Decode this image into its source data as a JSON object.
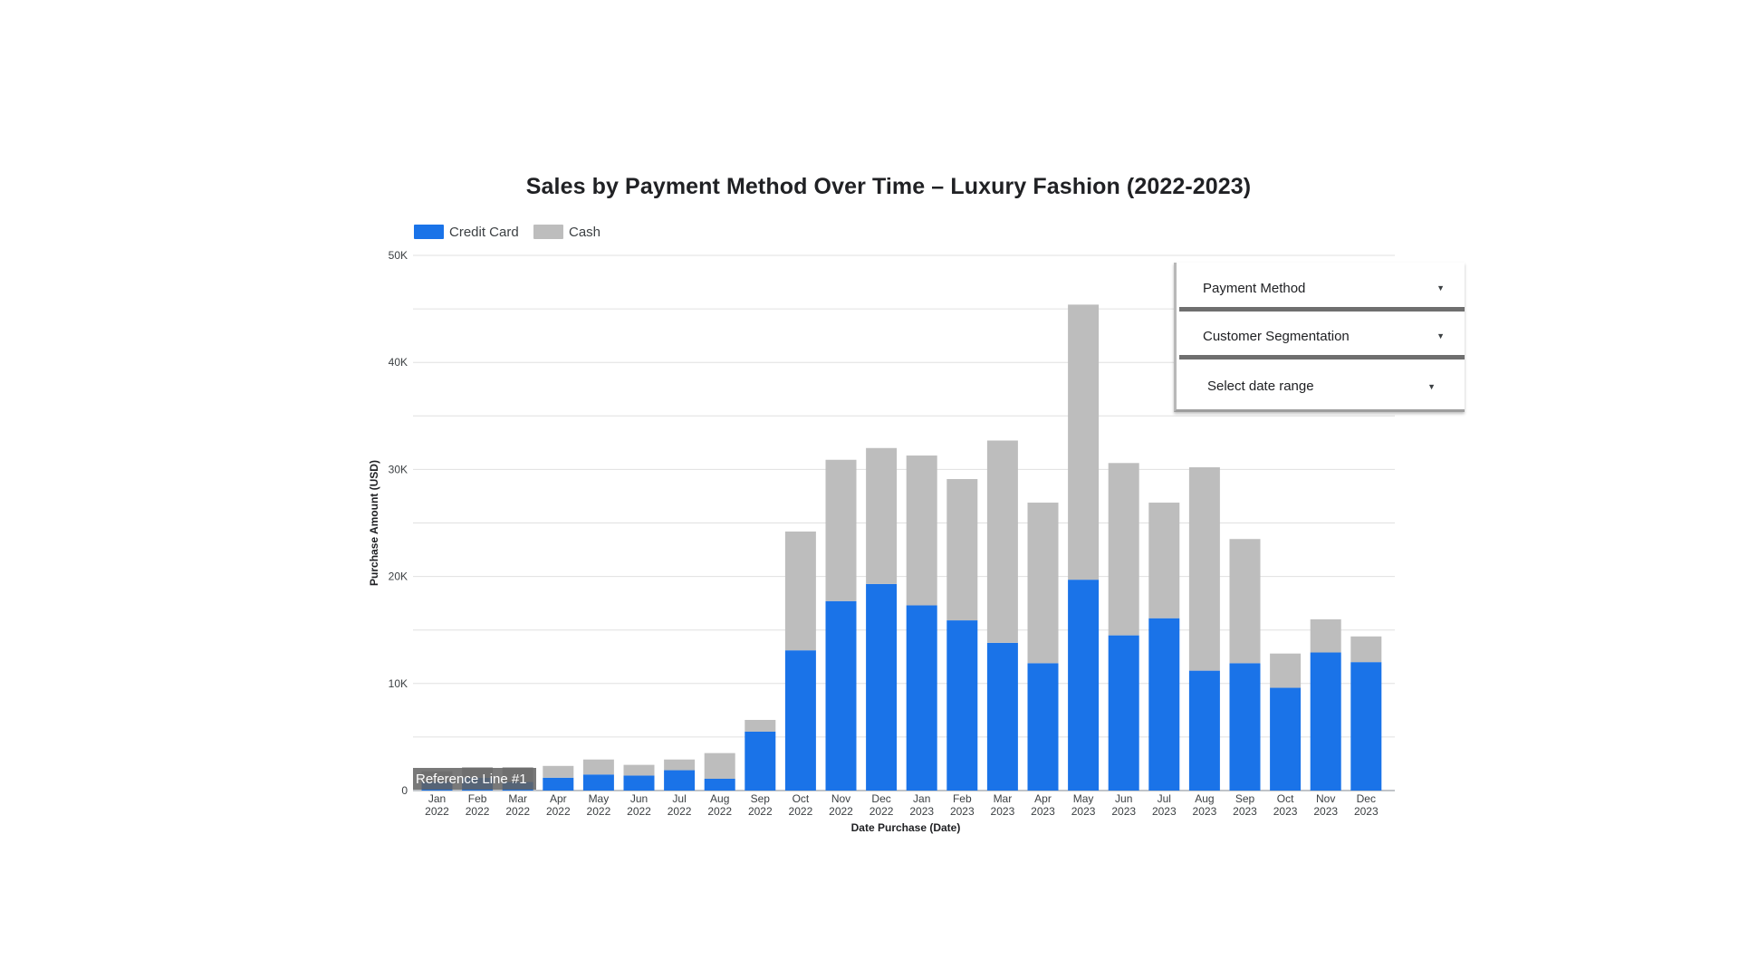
{
  "chart_data": {
    "type": "bar",
    "stacked": true,
    "title": "Sales by Payment Method Over Time – Luxury Fashion (2022-2023)",
    "xlabel": "Date Purchase (Date)",
    "ylabel": "Purchase Amount (USD)",
    "ylim": [
      0,
      50000
    ],
    "yticks": [
      0,
      10000,
      20000,
      30000,
      40000,
      50000
    ],
    "ytick_labels": [
      "0",
      "10K",
      "20K",
      "30K",
      "40K",
      "50K"
    ],
    "legend_position": "top-left",
    "grid": true,
    "categories": [
      {
        "month": "Jan",
        "year": "2022"
      },
      {
        "month": "Feb",
        "year": "2022"
      },
      {
        "month": "Mar",
        "year": "2022"
      },
      {
        "month": "Apr",
        "year": "2022"
      },
      {
        "month": "May",
        "year": "2022"
      },
      {
        "month": "Jun",
        "year": "2022"
      },
      {
        "month": "Jul",
        "year": "2022"
      },
      {
        "month": "Aug",
        "year": "2022"
      },
      {
        "month": "Sep",
        "year": "2022"
      },
      {
        "month": "Oct",
        "year": "2022"
      },
      {
        "month": "Nov",
        "year": "2022"
      },
      {
        "month": "Dec",
        "year": "2022"
      },
      {
        "month": "Jan",
        "year": "2023"
      },
      {
        "month": "Feb",
        "year": "2023"
      },
      {
        "month": "Mar",
        "year": "2023"
      },
      {
        "month": "Apr",
        "year": "2023"
      },
      {
        "month": "May",
        "year": "2023"
      },
      {
        "month": "Jun",
        "year": "2023"
      },
      {
        "month": "Jul",
        "year": "2023"
      },
      {
        "month": "Aug",
        "year": "2023"
      },
      {
        "month": "Sep",
        "year": "2023"
      },
      {
        "month": "Oct",
        "year": "2023"
      },
      {
        "month": "Nov",
        "year": "2023"
      },
      {
        "month": "Dec",
        "year": "2023"
      }
    ],
    "series": [
      {
        "name": "Credit Card",
        "color": "#1a73e8",
        "values": [
          800,
          1200,
          800,
          1200,
          1500,
          1400,
          1900,
          1100,
          5500,
          13100,
          17700,
          19300,
          17300,
          15900,
          13800,
          11900,
          19700,
          14500,
          16100,
          11200,
          11900,
          9600,
          12900,
          12000
        ]
      },
      {
        "name": "Cash",
        "color": "#bdbdbd",
        "values": [
          1000,
          1000,
          1400,
          1100,
          1400,
          1000,
          1000,
          2400,
          1100,
          11100,
          13200,
          12700,
          14000,
          13200,
          18900,
          15000,
          25700,
          16100,
          10800,
          19000,
          11600,
          3200,
          3100,
          2400
        ]
      }
    ],
    "reference_line": {
      "label": "Reference Line #1"
    }
  },
  "filters": [
    {
      "label": "Payment Method",
      "icon": "chevron-down-icon"
    },
    {
      "label": "Customer Segmentation",
      "icon": "chevron-down-icon"
    },
    {
      "label": "Select date range",
      "icon": "chevron-down-icon"
    }
  ],
  "chevron_glyph": "▼"
}
